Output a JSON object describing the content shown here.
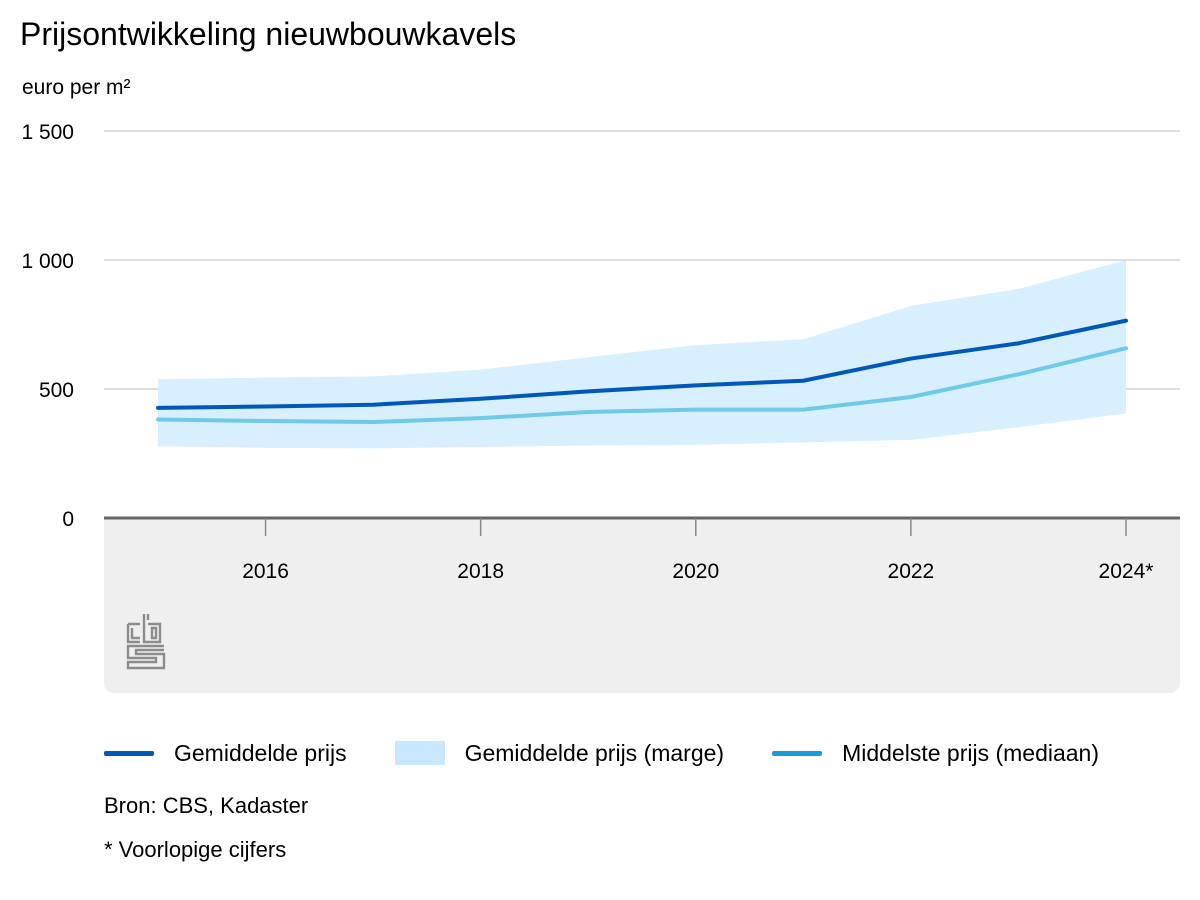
{
  "chart_data": {
    "type": "line",
    "title": "Prijsontwikkeling nieuwbouwkavels",
    "ylabel": "euro per m²",
    "xlabel": "",
    "ylim": [
      0,
      1500
    ],
    "xlim": [
      2014.75,
      2024.5
    ],
    "yticks": [
      0,
      500,
      1000,
      1500
    ],
    "ytick_labels": [
      "0",
      "500",
      "1 000",
      "1 500"
    ],
    "xticks": [
      2016,
      2018,
      2020,
      2022,
      2024
    ],
    "xtick_labels": [
      "2016",
      "2018",
      "2020",
      "2022",
      "2024*"
    ],
    "x": [
      2015,
      2016,
      2017,
      2018,
      2019,
      2020,
      2021,
      2022,
      2023,
      2024
    ],
    "series": [
      {
        "name": "Gemiddelde prijs",
        "kind": "line",
        "color": "#0058b8",
        "values": [
          427,
          432,
          439,
          462,
          491,
          514,
          532,
          618,
          677,
          765
        ]
      },
      {
        "name": "Gemiddelde prijs (marge)",
        "kind": "band",
        "color": "#d7efff",
        "lower": [
          278,
          272,
          270,
          275,
          281,
          284,
          293,
          303,
          352,
          405
        ],
        "upper": [
          538,
          544,
          549,
          575,
          623,
          670,
          693,
          822,
          888,
          999
        ]
      },
      {
        "name": "Middelste prijs (mediaan)",
        "kind": "line",
        "color": "#6ecae8",
        "values": [
          382,
          376,
          372,
          387,
          411,
          420,
          420,
          469,
          557,
          658
        ]
      }
    ]
  },
  "legend": {
    "mean_label": "Gemiddelde prijs",
    "band_label": "Gemiddelde prijs (marge)",
    "median_label": "Middelste prijs (mediaan)",
    "mean_color": "#0058b8",
    "band_color": "#c8e8ff",
    "median_color": "#1a9ad6"
  },
  "source": "Bron: CBS, Kadaster",
  "footnote": "* Voorlopige cijfers",
  "logo_text": "cbs"
}
